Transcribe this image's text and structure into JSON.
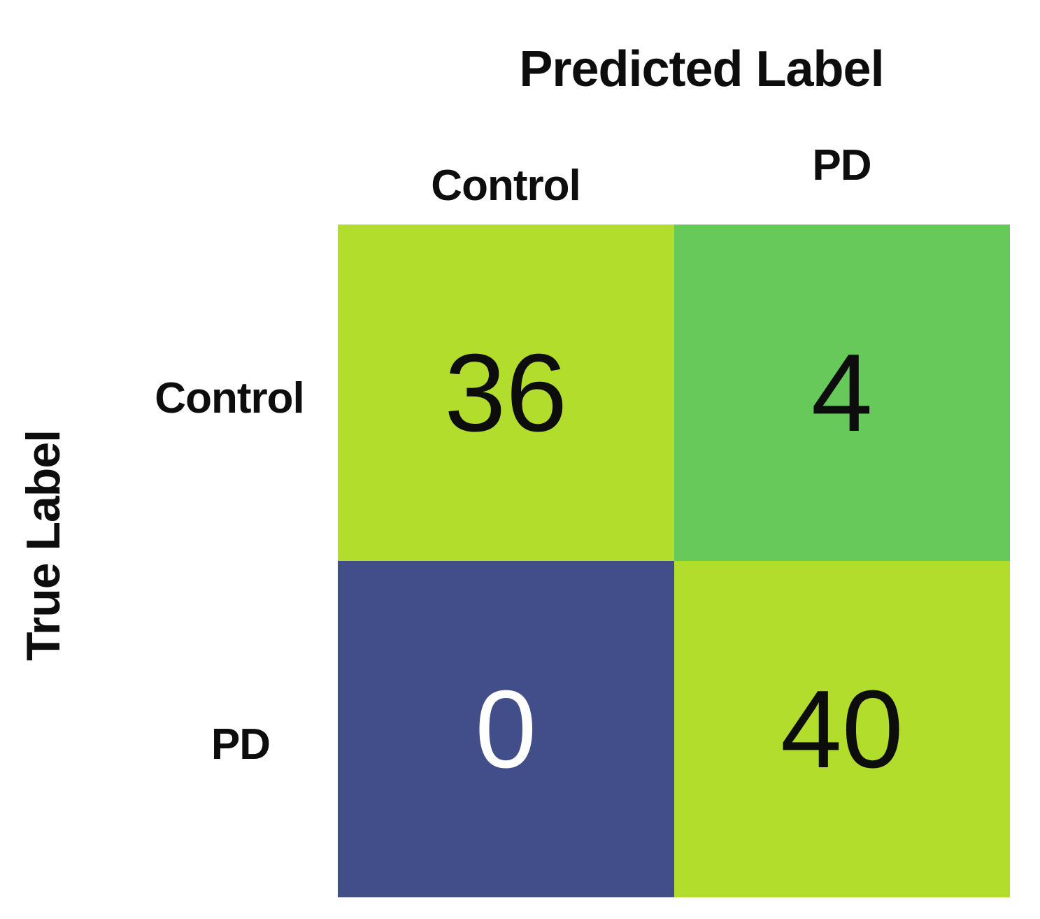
{
  "colors": {
    "background": "#ffffff",
    "lime_cell": "#b2dd2d",
    "green_cell": "#66c959",
    "navy_cell": "#414e8a",
    "dark_text": "#0d0d0d",
    "light_text": "#ffffff"
  },
  "chart_data": {
    "type": "heatmap",
    "title": "",
    "xlabel": "Predicted Label",
    "ylabel": "True Label",
    "x_categories": [
      "Control",
      "PD"
    ],
    "y_categories": [
      "Control",
      "PD"
    ],
    "values": [
      [
        36,
        4
      ],
      [
        0,
        40
      ]
    ],
    "cell_colors": [
      [
        "#b2dd2d",
        "#66c959"
      ],
      [
        "#414e8a",
        "#b2dd2d"
      ]
    ],
    "value_text_colors": [
      [
        "#0d0d0d",
        "#0d0d0d"
      ],
      [
        "#ffffff",
        "#0d0d0d"
      ]
    ],
    "legend": "none",
    "grid": false
  }
}
